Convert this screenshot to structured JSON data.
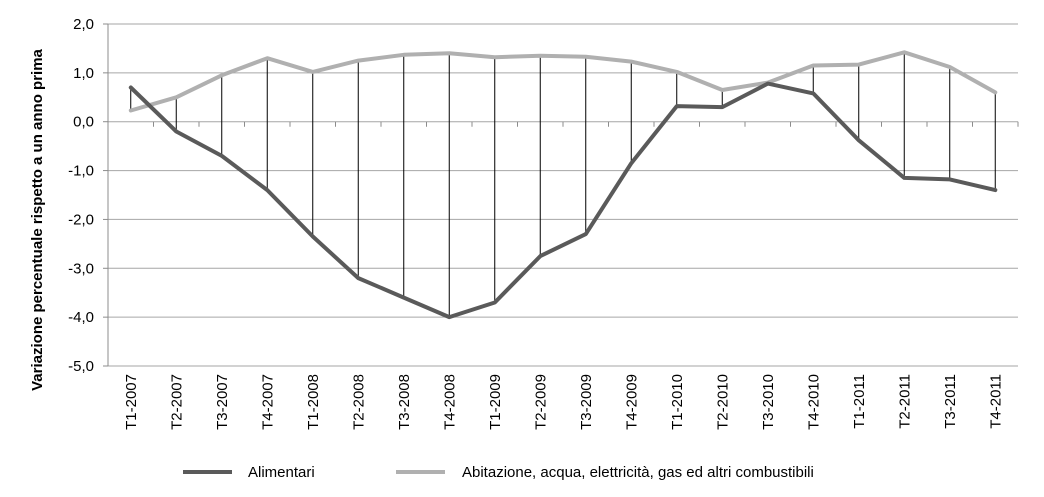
{
  "chart_data": {
    "type": "line",
    "title": "",
    "xlabel": "",
    "ylabel": "Variazione percentuale rispetto a un anno prima",
    "ylim": [
      -5.0,
      2.0
    ],
    "yticks": [
      "2,0",
      "1,0",
      "0,0",
      "-1,0",
      "-2,0",
      "-3,0",
      "-4,0",
      "-5,0"
    ],
    "grid": true,
    "legend_position": "bottom",
    "categories": [
      "T1-2007",
      "T2-2007",
      "T3-2007",
      "T4-2007",
      "T1-2008",
      "T2-2008",
      "T3-2008",
      "T4-2008",
      "T1-2009",
      "T2-2009",
      "T3-2009",
      "T4-2009",
      "T1-2010",
      "T2-2010",
      "T3-2010",
      "T4-2010",
      "T1-2011",
      "T2-2011",
      "T3-2011",
      "T4-2011"
    ],
    "series": [
      {
        "name": "Alimentari",
        "color": "#5a5a5a",
        "values": [
          0.7,
          -0.2,
          -0.7,
          -1.4,
          -2.35,
          -3.2,
          -3.6,
          -4.0,
          -3.7,
          -2.75,
          -2.3,
          -0.85,
          0.32,
          0.3,
          0.78,
          0.58,
          -0.38,
          -1.15,
          -1.18,
          -1.4
        ]
      },
      {
        "name": "Abitazione, acqua, elettricità, gas ed altri combustibili",
        "color": "#b0b0b0",
        "values": [
          0.23,
          0.5,
          0.95,
          1.3,
          1.02,
          1.25,
          1.37,
          1.4,
          1.32,
          1.35,
          1.33,
          1.23,
          1.02,
          0.65,
          0.8,
          1.15,
          1.17,
          1.42,
          1.12,
          0.6
        ]
      }
    ]
  }
}
